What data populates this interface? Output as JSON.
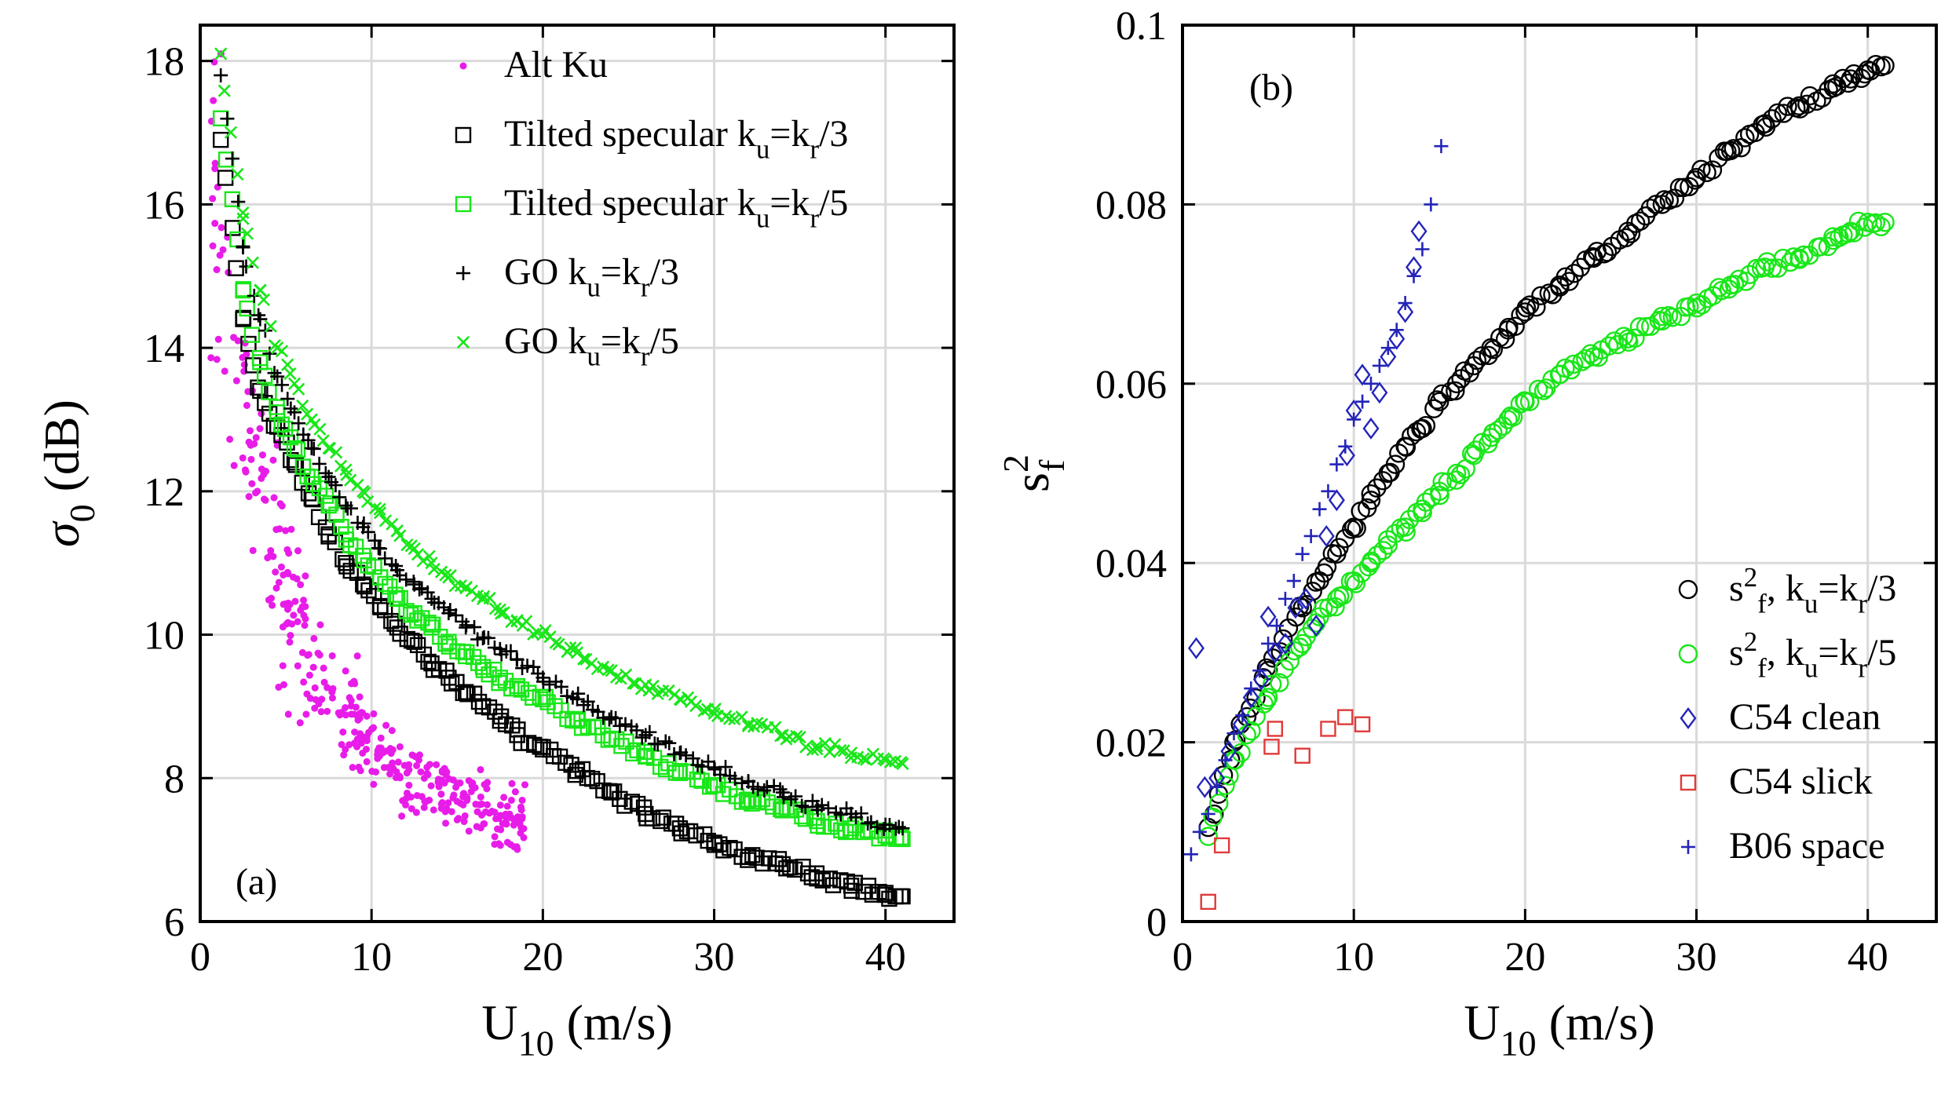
{
  "chart_data": [
    {
      "type": "scatter",
      "panel_label": "(a)",
      "xlabel": {
        "main": "U",
        "sub": "10",
        "unit": " (m/s)"
      },
      "ylabel": {
        "main": "σ",
        "sub": "0",
        "unit": " (dB)"
      },
      "xlim": [
        0,
        44
      ],
      "ylim": [
        6,
        18.5
      ],
      "xticks": [
        0,
        10,
        20,
        30,
        40
      ],
      "yticks": [
        6,
        8,
        10,
        12,
        14,
        16,
        18
      ],
      "grid": true,
      "legend_position": "top-right",
      "series": [
        {
          "id": "alt",
          "name": "Alt Ku",
          "legend": [
            "Alt Ku"
          ],
          "marker": "dot",
          "color": "#e81ce8",
          "model": "scatter",
          "x_range": [
            0.5,
            19
          ],
          "n": 360
        },
        {
          "id": "ts3",
          "name": "Tilted specular k_u=k_r/3",
          "legend": [
            [
              "Tilted specular k",
              ""
            ],
            [
              "u",
              "sub"
            ],
            [
              "=k",
              ""
            ],
            [
              "r",
              "sub"
            ],
            [
              "/3",
              ""
            ]
          ],
          "marker": "square",
          "color": "#000000",
          "x": [
            1.2,
            2.5,
            3.5,
            4.5,
            5.5,
            6.5,
            7.5,
            8.5,
            9.5,
            10.5,
            11.5,
            12.5,
            13.5,
            14.5,
            15.5,
            16.5,
            17.5,
            18.5,
            20,
            22,
            24,
            26,
            28,
            30,
            32,
            34,
            36,
            38,
            40,
            41
          ],
          "y": [
            16.9,
            14.4,
            13.4,
            12.9,
            12.4,
            11.9,
            11.4,
            11.0,
            10.7,
            10.4,
            10.1,
            9.9,
            9.6,
            9.4,
            9.2,
            9.0,
            8.8,
            8.6,
            8.4,
            8.1,
            7.8,
            7.5,
            7.3,
            7.1,
            6.9,
            6.8,
            6.6,
            6.5,
            6.4,
            6.35
          ]
        },
        {
          "id": "ts5",
          "name": "Tilted specular k_u=k_r/5",
          "legend": [
            [
              "Tilted specular k",
              ""
            ],
            [
              "u",
              "sub"
            ],
            [
              "=k",
              ""
            ],
            [
              "r",
              "sub"
            ],
            [
              "/5",
              ""
            ]
          ],
          "marker": "square",
          "color": "#19e619",
          "x": [
            1.2,
            2.5,
            3.5,
            4.5,
            5.5,
            6.5,
            7.5,
            8.5,
            9.5,
            10.5,
            11.5,
            12.5,
            13.5,
            14.5,
            15.5,
            16.5,
            17.5,
            18.5,
            20,
            22,
            24,
            26,
            28,
            30,
            32,
            34,
            36,
            38,
            40,
            41
          ],
          "y": [
            17.2,
            14.8,
            13.8,
            13.1,
            12.6,
            12.2,
            11.8,
            11.4,
            11.1,
            10.8,
            10.5,
            10.3,
            10.1,
            9.9,
            9.7,
            9.55,
            9.4,
            9.25,
            9.1,
            8.8,
            8.55,
            8.3,
            8.1,
            7.9,
            7.7,
            7.55,
            7.4,
            7.3,
            7.2,
            7.15
          ]
        },
        {
          "id": "go3",
          "name": "GO k_u=k_r/3",
          "legend": [
            [
              "GO k",
              ""
            ],
            [
              "u",
              "sub"
            ],
            [
              "=k",
              ""
            ],
            [
              "r",
              "sub"
            ],
            [
              "/3",
              ""
            ]
          ],
          "marker": "plus",
          "color": "#000000",
          "x": [
            1.2,
            2.5,
            3.5,
            4.5,
            5.5,
            6.5,
            7.5,
            8.5,
            9.5,
            10.5,
            11.5,
            12.5,
            13.5,
            14.5,
            15.5,
            16.5,
            17.5,
            18.5,
            20,
            22,
            24,
            26,
            28,
            30,
            32,
            34,
            36,
            38,
            40,
            41
          ],
          "y": [
            17.8,
            15.4,
            14.4,
            13.6,
            13.1,
            12.6,
            12.2,
            11.8,
            11.5,
            11.2,
            10.9,
            10.7,
            10.5,
            10.3,
            10.1,
            9.95,
            9.8,
            9.65,
            9.4,
            9.1,
            8.85,
            8.6,
            8.35,
            8.15,
            7.95,
            7.8,
            7.6,
            7.5,
            7.35,
            7.3
          ]
        },
        {
          "id": "go5",
          "name": "GO k_u=k_r/5",
          "legend": [
            [
              "GO k",
              ""
            ],
            [
              "u",
              "sub"
            ],
            [
              "=k",
              ""
            ],
            [
              "r",
              "sub"
            ],
            [
              "/5",
              ""
            ]
          ],
          "marker": "cross",
          "color": "#19e619",
          "x": [
            1.2,
            2.5,
            3.5,
            4.5,
            5.5,
            6.5,
            7.5,
            8.5,
            9.5,
            10.5,
            11.5,
            12.5,
            13.5,
            14.5,
            15.5,
            16.5,
            17.5,
            18.5,
            20,
            22,
            24,
            26,
            28,
            30,
            32,
            34,
            36,
            38,
            40,
            41
          ],
          "y": [
            18.1,
            15.8,
            14.8,
            14.0,
            13.5,
            13.0,
            12.6,
            12.3,
            12.0,
            11.7,
            11.45,
            11.2,
            11.0,
            10.8,
            10.65,
            10.5,
            10.35,
            10.2,
            10.0,
            9.75,
            9.5,
            9.3,
            9.1,
            8.9,
            8.75,
            8.6,
            8.45,
            8.35,
            8.25,
            8.2
          ]
        }
      ]
    },
    {
      "type": "scatter",
      "panel_label": "(b)",
      "xlabel": {
        "main": "U",
        "sub": "10",
        "unit": " (m/s)"
      },
      "ylabel": {
        "main": "s",
        "sup": "2",
        "sub": "f"
      },
      "xlim": [
        0,
        44
      ],
      "ylim": [
        0,
        0.1
      ],
      "xticks": [
        0,
        10,
        20,
        30,
        40
      ],
      "yticks": [
        0,
        0.02,
        0.04,
        0.06,
        0.08,
        0.1
      ],
      "ytick_labels": [
        "0",
        "0.02",
        "0.04",
        "0.06",
        "0.08",
        "0.1"
      ],
      "grid": true,
      "legend_position": "bottom-right",
      "series": [
        {
          "id": "sf3",
          "name": "s_f^2, k_u=k_r/3",
          "legend": [
            [
              "s",
              ""
            ],
            [
              "2",
              "sup"
            ],
            [
              "f",
              "sub"
            ],
            [
              ", k",
              ""
            ],
            [
              "u",
              "sub"
            ],
            [
              "=k",
              ""
            ],
            [
              "r",
              "sub"
            ],
            [
              "/3",
              ""
            ]
          ],
          "marker": "circle",
          "color": "#000000",
          "x": [
            1.5,
            3,
            5,
            7,
            8,
            9,
            10,
            11,
            12,
            13,
            14,
            15,
            16,
            17,
            18,
            19,
            20,
            22,
            24,
            26,
            28,
            30,
            32,
            34,
            36,
            38,
            39,
            40,
            41
          ],
          "y": [
            0.0105,
            0.02,
            0.028,
            0.035,
            0.038,
            0.041,
            0.044,
            0.047,
            0.05,
            0.053,
            0.055,
            0.058,
            0.06,
            0.062,
            0.064,
            0.066,
            0.068,
            0.071,
            0.074,
            0.077,
            0.08,
            0.083,
            0.086,
            0.089,
            0.091,
            0.093,
            0.094,
            0.095,
            0.0955
          ]
        },
        {
          "id": "sf5",
          "name": "s_f^2, k_u=k_r/5",
          "legend": [
            [
              "s",
              ""
            ],
            [
              "2",
              "sup"
            ],
            [
              "f",
              "sub"
            ],
            [
              ", k",
              ""
            ],
            [
              "u",
              "sub"
            ],
            [
              "=k",
              ""
            ],
            [
              "r",
              "sub"
            ],
            [
              "/5",
              ""
            ]
          ],
          "marker": "circle",
          "color": "#19e619",
          "x": [
            1.5,
            3,
            5,
            7,
            8,
            9,
            10,
            11,
            12,
            13,
            14,
            15,
            16,
            17,
            18,
            19,
            20,
            22,
            24,
            26,
            28,
            30,
            32,
            34,
            36,
            38,
            39,
            40,
            41
          ],
          "y": [
            0.0095,
            0.018,
            0.025,
            0.031,
            0.034,
            0.036,
            0.038,
            0.04,
            0.042,
            0.044,
            0.046,
            0.048,
            0.05,
            0.052,
            0.054,
            0.056,
            0.058,
            0.061,
            0.063,
            0.065,
            0.067,
            0.069,
            0.071,
            0.073,
            0.074,
            0.076,
            0.077,
            0.078,
            0.078
          ]
        },
        {
          "id": "c54c",
          "name": "C54 clean",
          "legend": [
            "C54 clean"
          ],
          "marker": "diamond",
          "color": "#2424b8",
          "x": [
            0.8,
            1.3,
            2.0,
            2.7,
            3.4,
            4.0,
            4.6,
            5.0,
            5.4,
            6.0,
            6.6,
            7.2,
            7.8,
            8.4,
            9.0,
            9.6,
            10.0,
            10.5,
            11.0,
            11.5,
            12.0,
            12.5,
            13.0,
            13.5,
            13.8
          ],
          "y": [
            0.0305,
            0.015,
            0.016,
            0.019,
            0.022,
            0.025,
            0.027,
            0.034,
            0.03,
            0.031,
            0.035,
            0.036,
            0.033,
            0.043,
            0.047,
            0.052,
            0.057,
            0.061,
            0.055,
            0.059,
            0.063,
            0.065,
            0.068,
            0.073,
            0.077
          ]
        },
        {
          "id": "c54s",
          "name": "C54 slick",
          "legend": [
            "C54 slick"
          ],
          "marker": "square",
          "color": "#e03a3a",
          "x": [
            1.5,
            2.3,
            5.2,
            5.4,
            7.0,
            8.5,
            9.5,
            10.5
          ],
          "y": [
            0.0022,
            0.0085,
            0.0195,
            0.0215,
            0.0185,
            0.0215,
            0.0228,
            0.022
          ]
        },
        {
          "id": "b06",
          "name": "B06 space",
          "legend": [
            "B06 space"
          ],
          "marker": "plus",
          "color": "#2424b8",
          "x": [
            0.5,
            1.0,
            1.5,
            2.0,
            2.5,
            3.0,
            3.5,
            4.0,
            4.5,
            5.0,
            5.5,
            6.0,
            6.5,
            7.0,
            7.5,
            8.0,
            8.5,
            9.0,
            9.5,
            10.0,
            10.5,
            11.0,
            11.5,
            12.0,
            12.5,
            13.0,
            13.5,
            14.0,
            14.5,
            15.1
          ],
          "y": [
            0.0075,
            0.01,
            0.012,
            0.015,
            0.018,
            0.021,
            0.023,
            0.026,
            0.028,
            0.031,
            0.033,
            0.036,
            0.038,
            0.041,
            0.043,
            0.046,
            0.048,
            0.051,
            0.053,
            0.056,
            0.058,
            0.06,
            0.062,
            0.064,
            0.066,
            0.069,
            0.072,
            0.075,
            0.08,
            0.0865
          ]
        }
      ]
    }
  ]
}
